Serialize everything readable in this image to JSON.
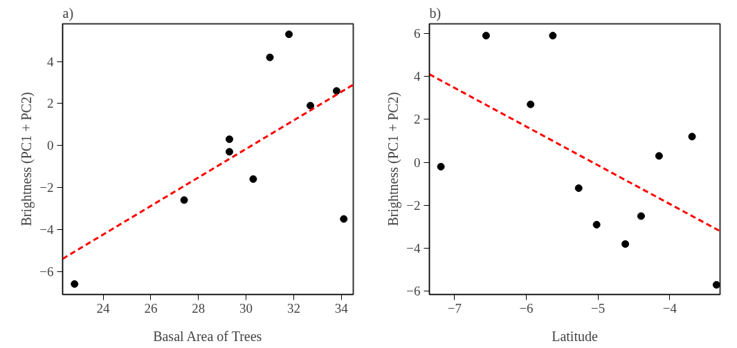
{
  "chart_data": [
    {
      "type": "scatter",
      "title": "a)",
      "xlabel": "Basal Area of Trees",
      "ylabel": "Brightness (PC1 + PC2)",
      "xlim": [
        22.3,
        34.5
      ],
      "xticks": [
        24,
        26,
        28,
        30,
        32,
        34
      ],
      "ylim": [
        -7.1,
        5.8
      ],
      "yticks": [
        -6,
        -4,
        -2,
        0,
        2,
        4
      ],
      "grid": false,
      "marker": "circle",
      "series": [
        {
          "color": "#000000",
          "x": [
            22.8,
            27.4,
            29.3,
            29.3,
            30.3,
            31.0,
            31.8,
            32.7,
            33.8,
            34.1
          ],
          "values": [
            -6.6,
            -2.6,
            0.3,
            -0.3,
            -1.6,
            4.2,
            5.3,
            1.9,
            2.6,
            -3.5
          ]
        },
        {
          "type": "line",
          "marker": "none",
          "color": "#ff0000",
          "line_style": "dashed",
          "x": [
            22.3,
            34.5
          ],
          "values": [
            -5.4,
            2.9
          ]
        }
      ]
    },
    {
      "type": "scatter",
      "title": "b)",
      "xlabel": "Latitude",
      "ylabel": "Brightness (PC1 + PC2)",
      "xlim": [
        -7.35,
        -3.3
      ],
      "xticks": [
        -7,
        -6,
        -5,
        -4
      ],
      "ylim": [
        -6.15,
        6.45
      ],
      "yticks": [
        -6,
        -4,
        -2,
        0,
        2,
        4,
        6
      ],
      "grid": false,
      "marker": "circle",
      "series": [
        {
          "color": "#000000",
          "x": [
            -7.19,
            -6.56,
            -5.63,
            -5.94,
            -5.27,
            -5.02,
            -4.62,
            -4.4,
            -4.15,
            -3.69,
            -3.35
          ],
          "values": [
            -0.2,
            5.9,
            5.9,
            2.7,
            -1.2,
            -2.9,
            -3.8,
            -2.5,
            0.3,
            1.2,
            -5.7
          ]
        },
        {
          "type": "line",
          "marker": "none",
          "color": "#ff0000",
          "line_style": "dashed",
          "x": [
            -7.35,
            -3.3
          ],
          "values": [
            4.1,
            -3.2
          ]
        }
      ]
    }
  ]
}
